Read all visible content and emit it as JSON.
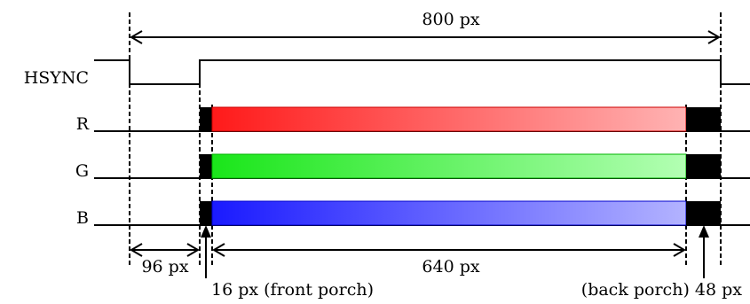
{
  "signals": {
    "hsync": "HSYNC",
    "r": "R",
    "g": "G",
    "b": "B"
  },
  "measurements": {
    "total": "800 px",
    "sync_pulse": "96 px",
    "active": "640 px",
    "front_porch": "16 px (front porch)",
    "back_porch": "(back porch) 48 px"
  },
  "colors": {
    "red_start": "#ff1a1a",
    "red_end": "#ffb3b3",
    "green_start": "#1ae61a",
    "green_end": "#b3ffb3",
    "blue_start": "#1a1aff",
    "blue_end": "#b3b3ff"
  }
}
